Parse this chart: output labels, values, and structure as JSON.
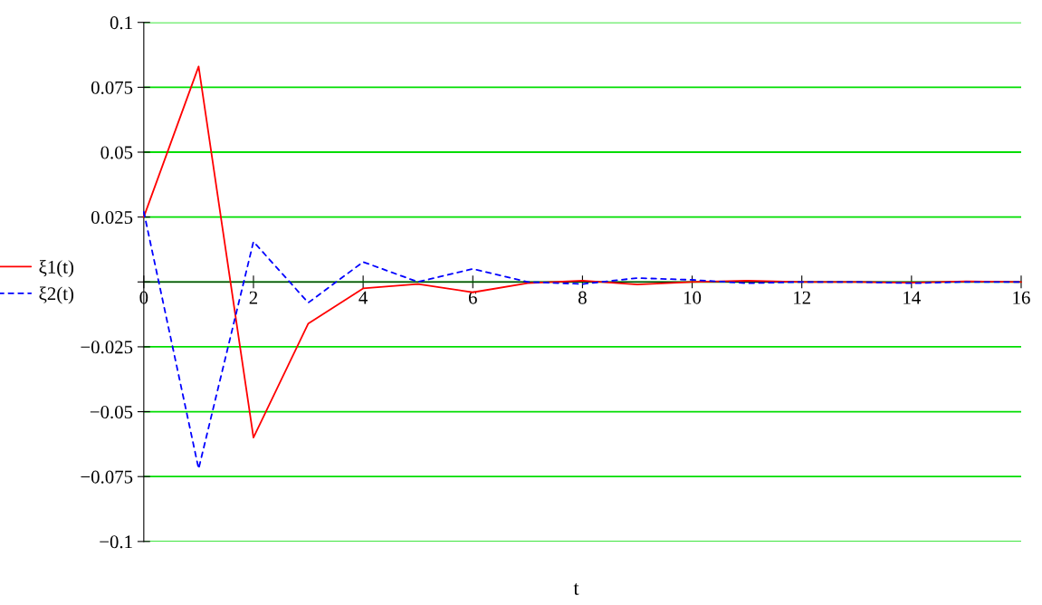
{
  "chart_data": {
    "type": "line",
    "xlabel": "t",
    "x": [
      0,
      1,
      2,
      3,
      4,
      5,
      6,
      7,
      8,
      9,
      10,
      11,
      12,
      13,
      14,
      15,
      16
    ],
    "series": [
      {
        "name": "ξ1(t)",
        "color": "#ff0000",
        "line_style": "solid",
        "values": [
          0.025,
          0.083,
          -0.06,
          -0.016,
          -0.0025,
          -0.0008,
          -0.004,
          -0.0005,
          0.0005,
          -0.001,
          0,
          0.0005,
          0,
          0,
          -0.0003,
          0.0002,
          0
        ]
      },
      {
        "name": "ξ2(t)",
        "color": "#0000ff",
        "line_style": "dashed",
        "values": [
          0.027,
          -0.072,
          0.0155,
          -0.008,
          0.0077,
          0,
          0.005,
          0,
          -0.0008,
          0.0015,
          0.0008,
          -0.0005,
          0,
          0,
          -0.0005,
          0,
          0
        ]
      }
    ],
    "xlim": [
      0,
      16
    ],
    "xticks": [
      0,
      2,
      4,
      6,
      8,
      10,
      12,
      14,
      16
    ],
    "ylim": [
      -0.1,
      0.1
    ],
    "yticks": [
      {
        "value": -0.1,
        "label": "−0.1"
      },
      {
        "value": -0.075,
        "label": "−0.075"
      },
      {
        "value": -0.05,
        "label": "−0.05"
      },
      {
        "value": -0.025,
        "label": "−0.025"
      },
      {
        "value": 0,
        "label": null
      },
      0.025,
      0.05,
      0.075,
      0.1
    ],
    "grid": "y",
    "legend": "left",
    "marker": "none"
  }
}
